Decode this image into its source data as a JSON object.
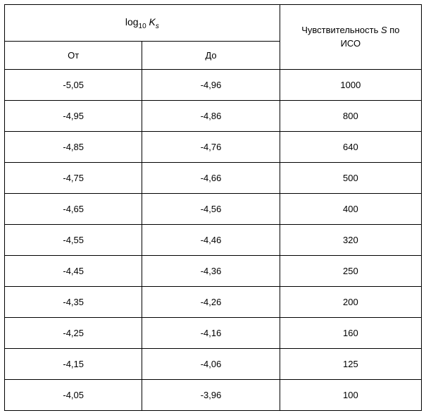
{
  "table": {
    "header": {
      "log_prefix": "log",
      "log_base": "10",
      "log_var": "K",
      "log_sub": "s",
      "sensitivity_line1": "Чувствительность ",
      "sensitivity_var": "S",
      "sensitivity_suffix": " по",
      "sensitivity_line2": "ИСО",
      "from_label": "От",
      "to_label": "До"
    },
    "rows": [
      {
        "from": "-5,05",
        "to": "-4,96",
        "iso": "1000"
      },
      {
        "from": "-4,95",
        "to": "-4,86",
        "iso": "800"
      },
      {
        "from": "-4,85",
        "to": "-4,76",
        "iso": "640"
      },
      {
        "from": "-4,75",
        "to": "-4,66",
        "iso": "500"
      },
      {
        "from": "-4,65",
        "to": "-4,56",
        "iso": "400"
      },
      {
        "from": "-4,55",
        "to": "-4,46",
        "iso": "320"
      },
      {
        "from": "-4,45",
        "to": "-4,36",
        "iso": "250"
      },
      {
        "from": "-4,35",
        "to": "-4,26",
        "iso": "200"
      },
      {
        "from": "-4,25",
        "to": "-4,16",
        "iso": "160"
      },
      {
        "from": "-4,15",
        "to": "-4,06",
        "iso": "125"
      },
      {
        "from": "-4,05",
        "to": "-3,96",
        "iso": "100"
      }
    ],
    "styling": {
      "border_color": "#000000",
      "background_color": "#ffffff",
      "font_size_body": 13,
      "font_size_header": 14,
      "font_size_subscript": 10
    }
  }
}
